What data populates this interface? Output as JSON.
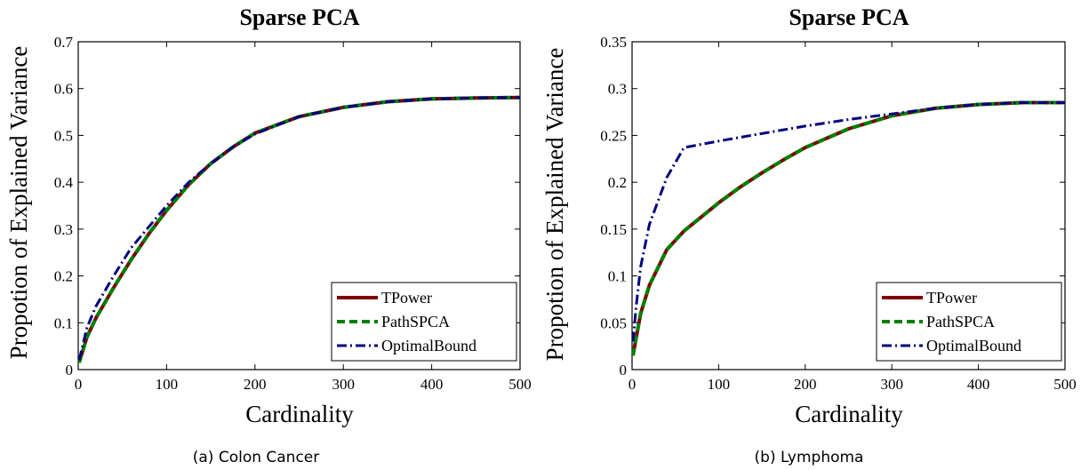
{
  "chart_data": [
    {
      "type": "line",
      "title": "Sparse PCA",
      "xlabel": "Cardinality",
      "ylabel": "Propotion of Explained Variance",
      "caption": "(a) Colon Cancer",
      "xlim": [
        0,
        500
      ],
      "ylim": [
        0,
        0.7
      ],
      "xticks": [
        0,
        100,
        200,
        300,
        400,
        500
      ],
      "yticks": [
        0,
        0.1,
        0.2,
        0.3,
        0.4,
        0.5,
        0.6,
        0.7
      ],
      "legend_position": "bottom-right",
      "series": [
        {
          "name": "TPower",
          "color": "#800000",
          "style": "solid",
          "x": [
            1,
            10,
            20,
            40,
            60,
            80,
            100,
            125,
            150,
            175,
            200,
            250,
            300,
            350,
            400,
            450,
            500
          ],
          "y": [
            0.015,
            0.07,
            0.11,
            0.175,
            0.235,
            0.29,
            0.34,
            0.395,
            0.44,
            0.475,
            0.505,
            0.54,
            0.56,
            0.572,
            0.578,
            0.58,
            0.581
          ]
        },
        {
          "name": "PathSPCA",
          "color": "#008000",
          "style": "dashed",
          "x": [
            1,
            10,
            20,
            40,
            60,
            80,
            100,
            125,
            150,
            175,
            200,
            250,
            300,
            350,
            400,
            450,
            500
          ],
          "y": [
            0.015,
            0.07,
            0.11,
            0.175,
            0.235,
            0.29,
            0.34,
            0.395,
            0.44,
            0.475,
            0.505,
            0.54,
            0.56,
            0.572,
            0.578,
            0.58,
            0.581
          ]
        },
        {
          "name": "OptimalBound",
          "color": "#00007f",
          "style": "dashdot",
          "x": [
            1,
            10,
            20,
            40,
            60,
            80,
            100,
            125,
            150,
            175,
            200,
            250,
            300,
            350,
            400,
            450,
            500
          ],
          "y": [
            0.02,
            0.09,
            0.135,
            0.2,
            0.26,
            0.305,
            0.35,
            0.4,
            0.44,
            0.475,
            0.503,
            0.54,
            0.56,
            0.572,
            0.578,
            0.58,
            0.581
          ]
        }
      ]
    },
    {
      "type": "line",
      "title": "Sparse PCA",
      "xlabel": "Cardinality",
      "ylabel": "Propotion of Explained Variance",
      "caption": "(b) Lymphoma",
      "xlim": [
        0,
        500
      ],
      "ylim": [
        0,
        0.35
      ],
      "xticks": [
        0,
        100,
        200,
        300,
        400,
        500
      ],
      "yticks": [
        0,
        0.05,
        0.1,
        0.15,
        0.2,
        0.25,
        0.3,
        0.35
      ],
      "legend_position": "bottom-right",
      "series": [
        {
          "name": "TPower",
          "color": "#800000",
          "style": "solid",
          "x": [
            1,
            10,
            20,
            40,
            60,
            80,
            100,
            125,
            150,
            175,
            200,
            250,
            300,
            350,
            400,
            450,
            500
          ],
          "y": [
            0.015,
            0.06,
            0.09,
            0.128,
            0.148,
            0.163,
            0.178,
            0.195,
            0.21,
            0.224,
            0.237,
            0.257,
            0.271,
            0.279,
            0.283,
            0.285,
            0.285
          ]
        },
        {
          "name": "PathSPCA",
          "color": "#008000",
          "style": "dashed",
          "x": [
            1,
            10,
            20,
            40,
            60,
            80,
            100,
            125,
            150,
            175,
            200,
            250,
            300,
            350,
            400,
            450,
            500
          ],
          "y": [
            0.015,
            0.06,
            0.09,
            0.128,
            0.148,
            0.163,
            0.178,
            0.195,
            0.21,
            0.224,
            0.237,
            0.257,
            0.271,
            0.279,
            0.283,
            0.285,
            0.285
          ]
        },
        {
          "name": "OptimalBound",
          "color": "#00007f",
          "style": "dashdot",
          "x": [
            1,
            5,
            10,
            20,
            40,
            60,
            100,
            150,
            200,
            250,
            300,
            350,
            400,
            450,
            500
          ],
          "y": [
            0.03,
            0.07,
            0.11,
            0.155,
            0.205,
            0.237,
            0.244,
            0.252,
            0.26,
            0.267,
            0.273,
            0.279,
            0.283,
            0.285,
            0.285
          ]
        }
      ]
    }
  ]
}
